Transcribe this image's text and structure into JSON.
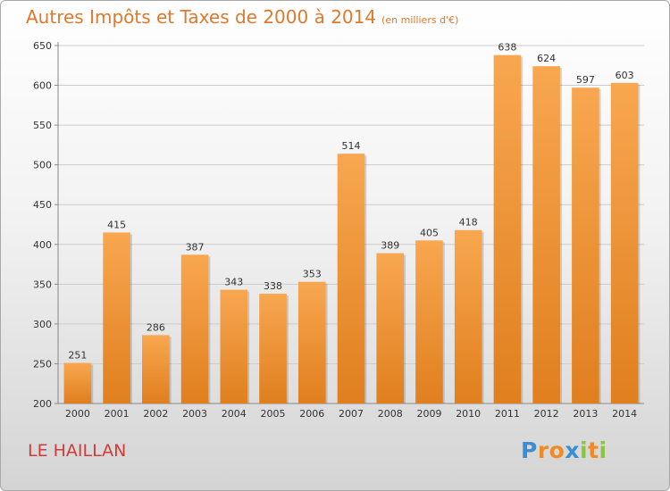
{
  "chart_data": {
    "type": "bar",
    "title": "Autres Impôts et Taxes de 2000 à 2014",
    "subtitle": "(en milliers d'€)",
    "categories": [
      "2000",
      "2001",
      "2002",
      "2003",
      "2004",
      "2005",
      "2006",
      "2007",
      "2008",
      "2009",
      "2010",
      "2011",
      "2012",
      "2013",
      "2014"
    ],
    "values": [
      251,
      415,
      286,
      387,
      343,
      338,
      353,
      514,
      389,
      405,
      418,
      638,
      624,
      597,
      603
    ],
    "ylim": [
      200,
      650
    ],
    "yticks": [
      200,
      250,
      300,
      350,
      400,
      450,
      500,
      550,
      600,
      650
    ],
    "grid": true,
    "bar_color": "#f0912f"
  },
  "place_name": "LE HAILLAN",
  "brand": {
    "letters": [
      "P",
      "r",
      "o",
      "x",
      "i",
      "t",
      "i"
    ],
    "colors": [
      "#3a8fd4",
      "#f08a24",
      "#f08a24",
      "#3a8fd4",
      "#8cc63f",
      "#f08a24",
      "#8cc63f"
    ]
  }
}
